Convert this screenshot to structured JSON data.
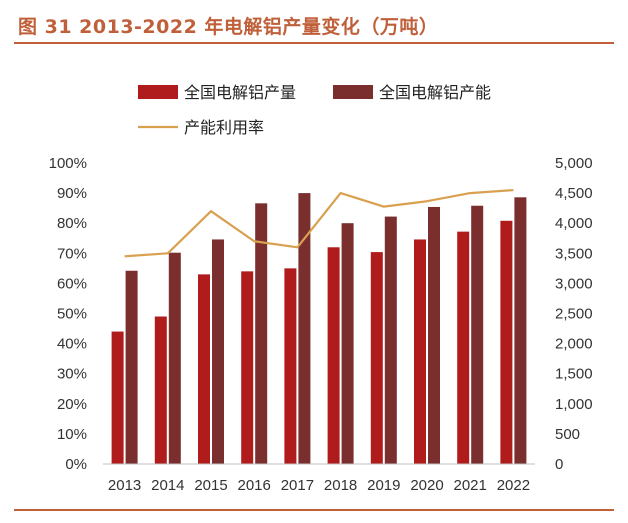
{
  "title": "图 31 2013-2022 年电解铝产量变化（万吨）",
  "colors": {
    "accent": "#c0603a",
    "production": "#b01c1c",
    "capacity": "#7a2e2e",
    "utilization": "#d9a050"
  },
  "chart_data": {
    "type": "bar",
    "categories": [
      "2013",
      "2014",
      "2015",
      "2016",
      "2017",
      "2018",
      "2019",
      "2020",
      "2021",
      "2022"
    ],
    "series": [
      {
        "name": "全国电解铝产量",
        "type": "bar",
        "axis": "right",
        "values": [
          2200,
          2450,
          3150,
          3200,
          3250,
          3600,
          3520,
          3730,
          3860,
          4040
        ]
      },
      {
        "name": "全国电解铝产能",
        "type": "bar",
        "axis": "right",
        "values": [
          3210,
          3510,
          3730,
          4330,
          4500,
          4000,
          4110,
          4270,
          4290,
          4430
        ]
      },
      {
        "name": "产能利用率",
        "type": "line",
        "axis": "left",
        "values": [
          0.69,
          0.7,
          0.84,
          0.74,
          0.72,
          0.9,
          0.855,
          0.873,
          0.9,
          0.91
        ]
      }
    ],
    "left_axis": {
      "ylim": [
        0,
        1
      ],
      "tick_labels": [
        "0%",
        "10%",
        "20%",
        "30%",
        "40%",
        "50%",
        "60%",
        "70%",
        "80%",
        "90%",
        "100%"
      ]
    },
    "right_axis": {
      "ylim": [
        0,
        5000
      ],
      "tick_labels": [
        "0",
        "500",
        "1,000",
        "1,500",
        "2,000",
        "2,500",
        "3,000",
        "3,500",
        "4,000",
        "4,500",
        "5,000"
      ]
    },
    "grid": false,
    "legend_position": "top"
  }
}
